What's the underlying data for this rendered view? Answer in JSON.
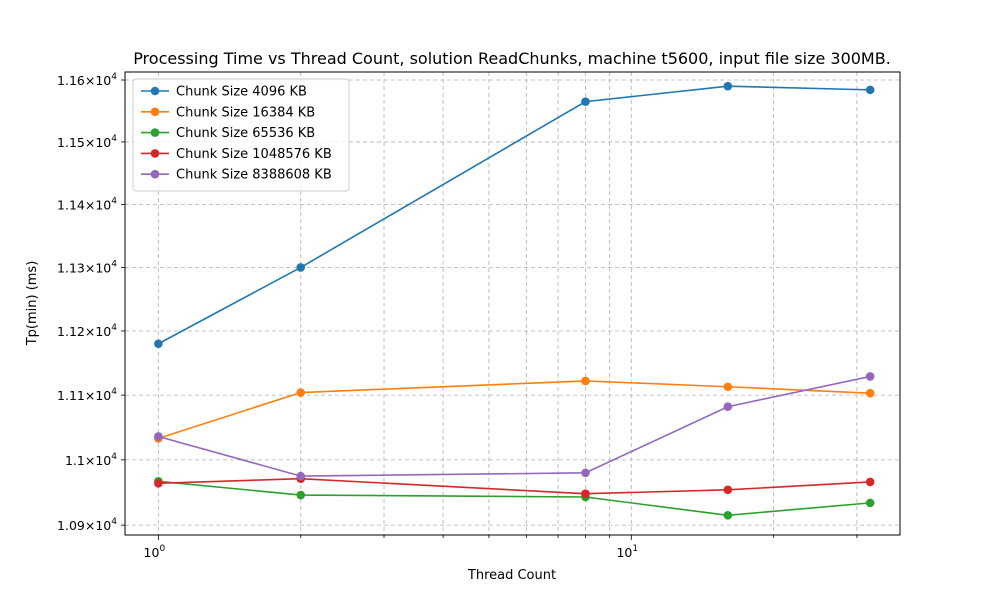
{
  "chart_data": {
    "type": "line",
    "title": "Processing Time vs Thread Count, solution ReadChunks, machine t5600, input file size 300MB.",
    "xlabel": "Thread Count",
    "ylabel": "Tp(min) (ms)",
    "xscale": "log",
    "yscale": "log",
    "xlim": [
      0.85,
      37
    ],
    "ylim": [
      10885,
      11613
    ],
    "grid": true,
    "legend_position": "top-left",
    "x": [
      1,
      2,
      8,
      16,
      32
    ],
    "x_major_ticks": [
      {
        "value": 1,
        "base": "10",
        "exp": "0"
      },
      {
        "value": 10,
        "base": "10",
        "exp": "1"
      }
    ],
    "x_minor_ticks": [
      2,
      3,
      4,
      5,
      6,
      7,
      8,
      9,
      20,
      30
    ],
    "y_ticks": [
      {
        "value": 10900,
        "mantissa": "1.09",
        "exp": "4"
      },
      {
        "value": 11000,
        "mantissa": "1.1",
        "exp": "4"
      },
      {
        "value": 11100,
        "mantissa": "1.11",
        "exp": "4"
      },
      {
        "value": 11200,
        "mantissa": "1.12",
        "exp": "4"
      },
      {
        "value": 11300,
        "mantissa": "1.13",
        "exp": "4"
      },
      {
        "value": 11400,
        "mantissa": "1.14",
        "exp": "4"
      },
      {
        "value": 11500,
        "mantissa": "1.15",
        "exp": "4"
      },
      {
        "value": 11600,
        "mantissa": "1.16",
        "exp": "4"
      }
    ],
    "y_tick_times": "×",
    "series": [
      {
        "name": "Chunk Size 4096 KB",
        "color": "#1f77b4",
        "values": [
          11180,
          11300,
          11565,
          11590,
          11584
        ]
      },
      {
        "name": "Chunk Size 16384 KB",
        "color": "#ff7f0e",
        "values": [
          11033,
          11104,
          11122,
          11113,
          11103
        ]
      },
      {
        "name": "Chunk Size 65536 KB",
        "color": "#2ca02c",
        "values": [
          10967,
          10946,
          10943,
          10915,
          10934
        ]
      },
      {
        "name": "Chunk Size 1048576 KB",
        "color": "#d62728",
        "values": [
          10964,
          10971,
          10948,
          10954,
          10966
        ]
      },
      {
        "name": "Chunk Size 8388608 KB",
        "color": "#9467bd",
        "values": [
          11036,
          10975,
          10980,
          11082,
          11129
        ]
      }
    ]
  }
}
